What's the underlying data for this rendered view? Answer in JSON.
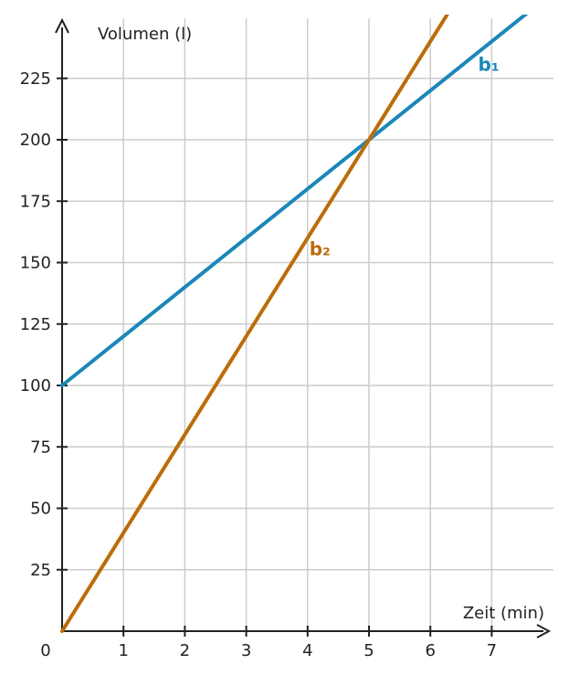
{
  "chart_data": {
    "type": "line",
    "xlabel": "Zeit (min)",
    "ylabel": "Volumen (l)",
    "origin_label": "0",
    "x_ticks": [
      1,
      2,
      3,
      4,
      5,
      6,
      7
    ],
    "y_ticks": [
      25,
      50,
      75,
      100,
      125,
      150,
      175,
      200,
      225
    ],
    "xlim": [
      0,
      8
    ],
    "ylim": [
      0,
      250
    ],
    "grid": true,
    "series": [
      {
        "name": "b₁",
        "color": "#1a87b8",
        "x": [
          0,
          7.7
        ],
        "y": [
          100,
          254
        ]
      },
      {
        "name": "b₂",
        "color": "#bb6c09",
        "x": [
          0,
          6.3
        ],
        "y": [
          0,
          252
        ]
      }
    ]
  }
}
